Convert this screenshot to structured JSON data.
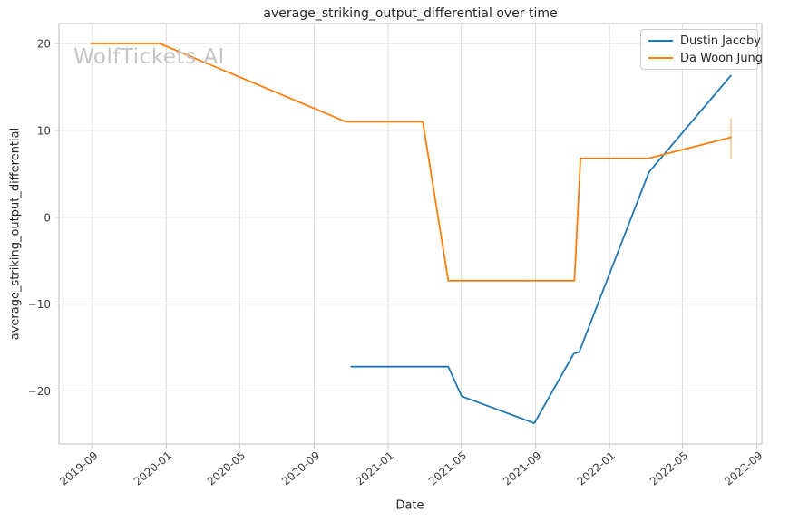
{
  "watermark": "WolfTickets.AI",
  "chart_data": {
    "type": "line",
    "title": "average_striking_output_differential over time",
    "xlabel": "Date",
    "ylabel": "average_striking_output_differential",
    "grid": true,
    "legend_position": "upper right",
    "xlim": [
      "2019-07-08",
      "2022-09-09"
    ],
    "ylim": [
      -26.1,
      22.3
    ],
    "x_ticks": [
      {
        "label": "2019-09",
        "date": "2019-09-01"
      },
      {
        "label": "2020-01",
        "date": "2020-01-01"
      },
      {
        "label": "2020-05",
        "date": "2020-05-01"
      },
      {
        "label": "2020-09",
        "date": "2020-09-01"
      },
      {
        "label": "2021-01",
        "date": "2021-01-01"
      },
      {
        "label": "2021-05",
        "date": "2021-05-01"
      },
      {
        "label": "2021-09",
        "date": "2021-09-01"
      },
      {
        "label": "2022-01",
        "date": "2022-01-01"
      },
      {
        "label": "2022-05",
        "date": "2022-05-01"
      },
      {
        "label": "2022-09",
        "date": "2022-09-01"
      }
    ],
    "y_ticks": [
      {
        "label": "20",
        "value": 20
      },
      {
        "label": "10",
        "value": 10
      },
      {
        "label": "0",
        "value": 0
      },
      {
        "label": "−10",
        "value": -10
      },
      {
        "label": "−20",
        "value": -20
      }
    ],
    "series": [
      {
        "name": "Dustin Jacoby",
        "color": "#1f77b4",
        "points": [
          [
            "2020-11-01",
            -17.2
          ],
          [
            "2021-04-10",
            -17.2
          ],
          [
            "2021-05-02",
            -20.6
          ],
          [
            "2021-08-30",
            -23.7
          ],
          [
            "2021-11-03",
            -15.7
          ],
          [
            "2021-11-12",
            -15.5
          ],
          [
            "2022-03-07",
            5.2
          ],
          [
            "2022-07-20",
            16.3
          ]
        ],
        "error_bars": []
      },
      {
        "name": "Da Woon Jung",
        "color": "#ff7f0e",
        "points": [
          [
            "2019-08-30",
            20.0
          ],
          [
            "2019-12-21",
            20.0
          ],
          [
            "2020-10-23",
            11.0
          ],
          [
            "2021-02-27",
            11.0
          ],
          [
            "2021-04-10",
            -7.3
          ],
          [
            "2021-11-04",
            -7.3
          ],
          [
            "2021-11-14",
            6.8
          ],
          [
            "2022-03-07",
            6.8
          ],
          [
            "2022-07-20",
            9.2
          ]
        ],
        "error_bars": [
          {
            "date": "2022-07-20",
            "low": 6.7,
            "high": 11.4
          }
        ]
      }
    ],
    "colors": {
      "grid": "#dcdcdc",
      "spine": "#c6c6c6",
      "tick_text": "#3d3d3d",
      "title_text": "#262626",
      "watermark": "#c5c5c5",
      "legend_border": "#cccccc",
      "error_bar": "rgba(255,127,14,0.5)"
    }
  }
}
